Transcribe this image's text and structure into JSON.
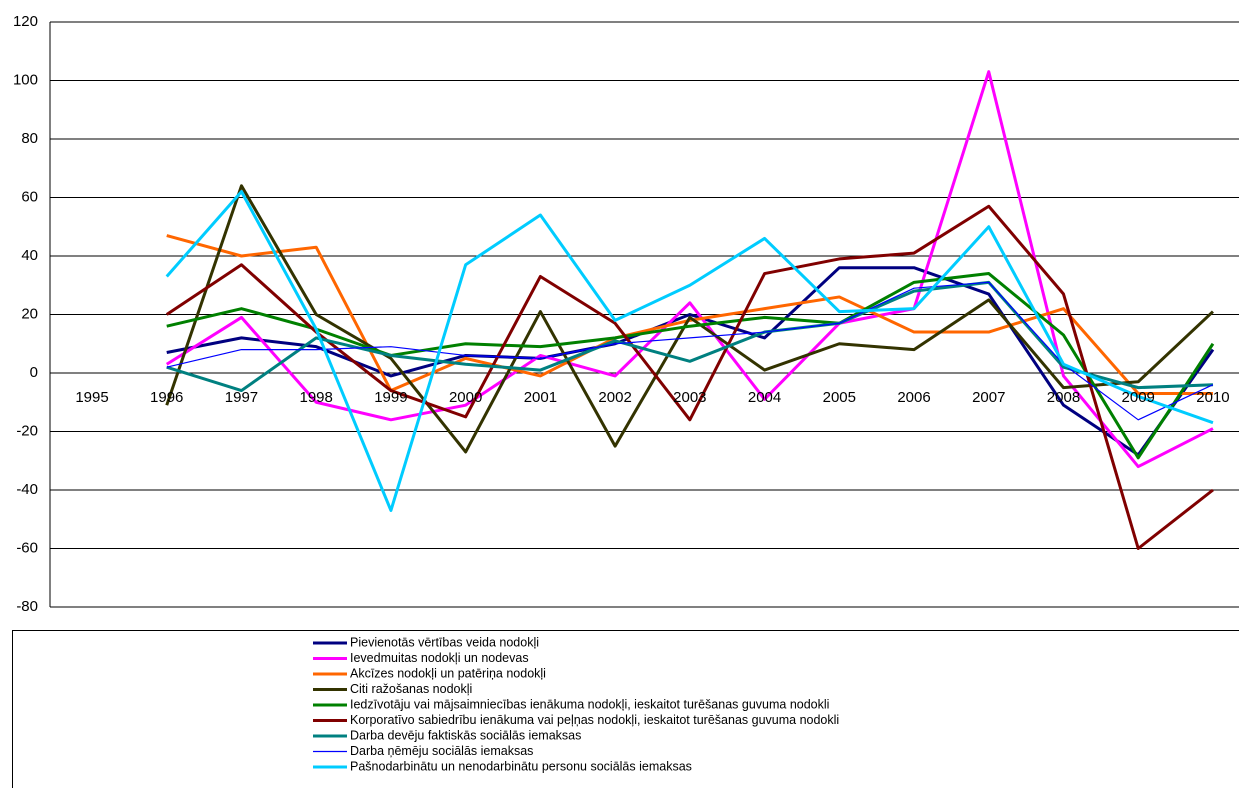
{
  "chart_data": {
    "type": "line",
    "categories": [
      "1995",
      "1996",
      "1997",
      "1998",
      "1999",
      "2000",
      "2001",
      "2002",
      "2003",
      "2004",
      "2005",
      "2006",
      "2007",
      "2008",
      "2009",
      "2010"
    ],
    "ylim": [
      -80,
      120
    ],
    "yticks": [
      -80,
      -60,
      -40,
      -20,
      0,
      20,
      40,
      60,
      80,
      100,
      120
    ],
    "grid": true,
    "series": [
      {
        "name": "Pievienotās vērtības veida nodokļi",
        "color": "#000080",
        "values": [
          null,
          7,
          12,
          9,
          -1,
          6,
          5,
          10,
          20,
          12,
          36,
          36,
          27,
          -11,
          -28,
          8
        ]
      },
      {
        "name": "Ievedmuitas nodokļi un nodevas",
        "color": "#ff00ff",
        "values": [
          null,
          3,
          19,
          -10,
          -16,
          -11,
          6,
          -1,
          24,
          -9,
          17,
          22,
          103,
          -1,
          -32,
          -19
        ]
      },
      {
        "name": "Akcīzes nodokļi un patēriņa nodokļi",
        "color": "#ff6600",
        "values": [
          null,
          47,
          40,
          43,
          -6,
          5,
          -1,
          12,
          18,
          22,
          26,
          14,
          14,
          22,
          -7,
          -7
        ]
      },
      {
        "name": "Citi ražošanas nodokļi",
        "color": "#333300",
        "values": [
          null,
          -11,
          64,
          20,
          5,
          -27,
          21,
          -25,
          19,
          1,
          10,
          8,
          25,
          -5,
          -3,
          21
        ]
      },
      {
        "name": "Iedzīvotāju vai mājsaimniecības ienākuma nodokļi, ieskaitot turēšanas guvuma nodokli",
        "color": "#008000",
        "values": [
          null,
          16,
          22,
          15,
          6,
          10,
          9,
          12,
          16,
          19,
          17,
          31,
          34,
          13,
          -29,
          10
        ]
      },
      {
        "name": "Korporatīvo sabiedrību ienākuma vai peļņas nodokļi, ieskaitot turēšanas guvuma nodokli",
        "color": "#800000",
        "values": [
          null,
          20,
          37,
          14,
          -6,
          -15,
          33,
          17,
          -16,
          34,
          39,
          41,
          57,
          27,
          -60,
          -40
        ]
      },
      {
        "name": "Darba devēju faktiskās sociālās iemaksas",
        "color": "#008080",
        "values": [
          null,
          2,
          -6,
          12,
          6,
          3,
          1,
          11,
          4,
          14,
          17,
          28,
          31,
          2,
          -5,
          -4
        ]
      },
      {
        "name": "Darba ņēmēju sociālās iemaksas",
        "color": "#0000ff",
        "values": [
          null,
          2,
          8,
          8,
          9,
          6,
          5,
          10,
          12,
          14,
          17,
          29,
          31,
          3,
          -16,
          -4
        ]
      },
      {
        "name": "Pašnodarbinātu un nenodarbinātu personu sociālās iemaksas",
        "color": "#00ccff",
        "values": [
          null,
          33,
          62,
          15,
          -47,
          37,
          54,
          18,
          30,
          46,
          21,
          22,
          50,
          3,
          -8,
          -17
        ]
      }
    ]
  }
}
